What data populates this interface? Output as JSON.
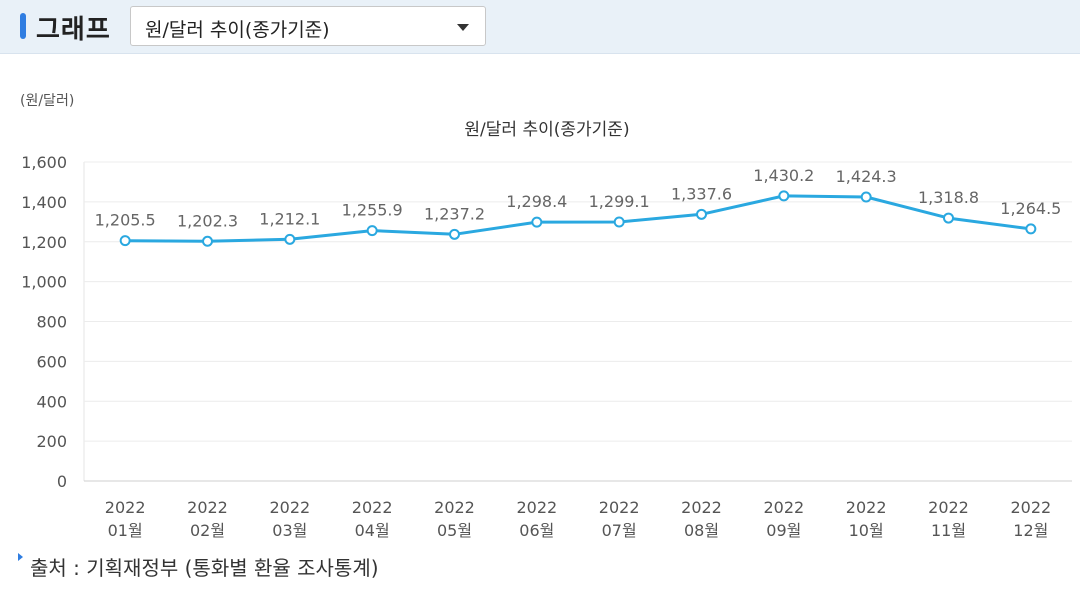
{
  "header": {
    "title": "그래프",
    "select_value": "원/달러 추이(종가기준)"
  },
  "footer": {
    "source": "출처 : 기획재정부 (통화별 환율 조사통계)"
  },
  "colors": {
    "accent": "#2f7de1",
    "line": "#2aa8e0",
    "header_bg": "#e9f1f8"
  },
  "chart_data": {
    "type": "line",
    "title": "원/달러 추이(종가기준)",
    "unit_label": "(원/달러)",
    "categories": [
      [
        "2022",
        "01월"
      ],
      [
        "2022",
        "02월"
      ],
      [
        "2022",
        "03월"
      ],
      [
        "2022",
        "04월"
      ],
      [
        "2022",
        "05월"
      ],
      [
        "2022",
        "06월"
      ],
      [
        "2022",
        "07월"
      ],
      [
        "2022",
        "08월"
      ],
      [
        "2022",
        "09월"
      ],
      [
        "2022",
        "10월"
      ],
      [
        "2022",
        "11월"
      ],
      [
        "2022",
        "12월"
      ]
    ],
    "values": [
      1205.5,
      1202.3,
      1212.1,
      1255.9,
      1237.2,
      1298.4,
      1299.1,
      1337.6,
      1430.2,
      1424.3,
      1318.8,
      1264.5
    ],
    "value_labels": [
      "1,205.5",
      "1,202.3",
      "1,212.1",
      "1,255.9",
      "1,237.2",
      "1,298.4",
      "1,299.1",
      "1,337.6",
      "1,430.2",
      "1,424.3",
      "1,318.8",
      "1,264.5"
    ],
    "yticks": [
      0,
      200,
      400,
      600,
      800,
      1000,
      1200,
      1400,
      1600
    ],
    "ytick_labels": [
      "0",
      "200",
      "400",
      "600",
      "800",
      "1,000",
      "1,200",
      "1,400",
      "1,600"
    ],
    "ylim": [
      0,
      1600
    ],
    "grid": true,
    "legend": "none"
  }
}
